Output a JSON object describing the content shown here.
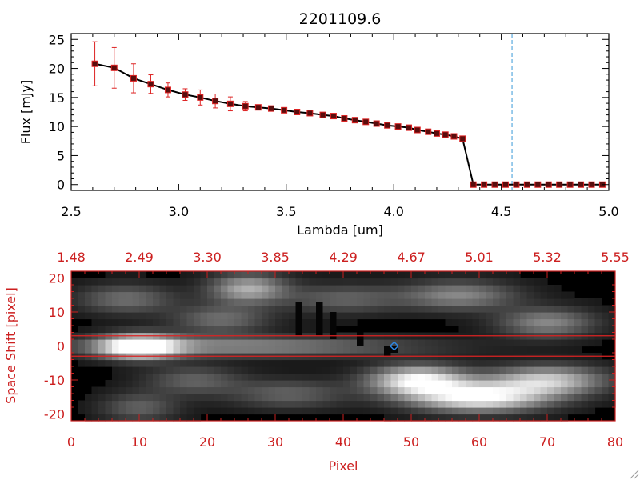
{
  "chart_data": [
    {
      "type": "line",
      "title": "2201109.6",
      "xlabel": "Lambda [um]",
      "ylabel": "Flux [mJy]",
      "xlim": [
        2.5,
        5.0
      ],
      "ylim": [
        -1,
        26
      ],
      "xticks": [
        "2.5",
        "3.0",
        "3.5",
        "4.0",
        "4.5",
        "5.0"
      ],
      "yticks": [
        "0",
        "5",
        "10",
        "15",
        "20",
        "25"
      ],
      "marker_line": 4.55,
      "series": [
        {
          "name": "spectrum",
          "x": [
            2.61,
            2.7,
            2.79,
            2.87,
            2.95,
            3.03,
            3.1,
            3.17,
            3.24,
            3.31,
            3.37,
            3.43,
            3.49,
            3.55,
            3.61,
            3.67,
            3.72,
            3.77,
            3.82,
            3.87,
            3.92,
            3.97,
            4.02,
            4.07,
            4.11,
            4.16,
            4.2,
            4.24,
            4.28,
            4.32,
            4.37,
            4.42,
            4.47,
            4.52,
            4.57,
            4.62,
            4.67,
            4.72,
            4.77,
            4.82,
            4.87,
            4.92,
            4.97
          ],
          "y": [
            20.8,
            20.1,
            18.3,
            17.3,
            16.3,
            15.5,
            15.0,
            14.4,
            13.9,
            13.5,
            13.3,
            13.1,
            12.8,
            12.5,
            12.3,
            12.0,
            11.8,
            11.4,
            11.1,
            10.8,
            10.5,
            10.2,
            10.0,
            9.8,
            9.4,
            9.1,
            8.8,
            8.6,
            8.3,
            7.9,
            0.0,
            0.0,
            0.0,
            0.0,
            0.0,
            0.0,
            0.0,
            0.0,
            0.0,
            0.0,
            0.0,
            0.0,
            0.0
          ],
          "err": [
            3.8,
            3.5,
            2.5,
            1.6,
            1.2,
            1.0,
            1.3,
            1.2,
            1.2,
            0.8,
            0,
            0,
            0,
            0,
            0,
            0,
            0,
            0,
            0,
            0,
            0,
            0,
            0,
            0,
            0,
            0,
            0,
            0,
            0,
            0,
            0,
            0,
            0,
            0,
            0,
            0,
            0,
            0,
            0,
            0,
            0,
            0,
            0
          ]
        }
      ]
    },
    {
      "type": "heatmap",
      "xlabel": "Pixel",
      "ylabel": "Space Shift [pixel]",
      "xlim": [
        0,
        80
      ],
      "ylim": [
        -22,
        22
      ],
      "xticks": [
        "0",
        "10",
        "20",
        "30",
        "40",
        "50",
        "60",
        "70",
        "80"
      ],
      "yticks": [
        "-20",
        "-10",
        "0",
        "10",
        "20"
      ],
      "top_axis_ticks": [
        "1.48",
        "2.49",
        "3.30",
        "3.85",
        "4.29",
        "4.67",
        "5.01",
        "5.32",
        "5.55"
      ],
      "extraction_band": [
        -3,
        3
      ],
      "blobs": [
        {
          "cx": 10,
          "cy": 0,
          "sx": 4,
          "sy": 2.5,
          "amp": 1.0
        },
        {
          "cx": 25,
          "cy": 0,
          "sx": 18,
          "sy": 2,
          "amp": 0.45
        },
        {
          "cx": 60,
          "cy": -15,
          "sx": 7,
          "sy": 3,
          "amp": 0.9
        },
        {
          "cx": 51,
          "cy": -10,
          "sx": 5,
          "sy": 3,
          "amp": 0.9
        },
        {
          "cx": 70,
          "cy": -10,
          "sx": 6,
          "sy": 3,
          "amp": 0.7
        },
        {
          "cx": 26,
          "cy": 17,
          "sx": 4,
          "sy": 3,
          "amp": 0.6
        },
        {
          "cx": 57,
          "cy": 15,
          "sx": 6,
          "sy": 3,
          "amp": 0.45
        },
        {
          "cx": 70,
          "cy": 7,
          "sx": 5,
          "sy": 3,
          "amp": 0.45
        },
        {
          "cx": 8,
          "cy": 14,
          "sx": 5,
          "sy": 3,
          "amp": 0.35
        },
        {
          "cx": 22,
          "cy": 8,
          "sx": 5,
          "sy": 3,
          "amp": 0.35
        },
        {
          "cx": 40,
          "cy": 14,
          "sx": 6,
          "sy": 3,
          "amp": 0.3
        },
        {
          "cx": 18,
          "cy": -10,
          "sx": 5,
          "sy": 3,
          "amp": 0.3
        },
        {
          "cx": 32,
          "cy": -14,
          "sx": 6,
          "sy": 3,
          "amp": 0.3
        },
        {
          "cx": 10,
          "cy": -18,
          "sx": 4,
          "sy": 3,
          "amp": 0.3
        }
      ]
    }
  ]
}
